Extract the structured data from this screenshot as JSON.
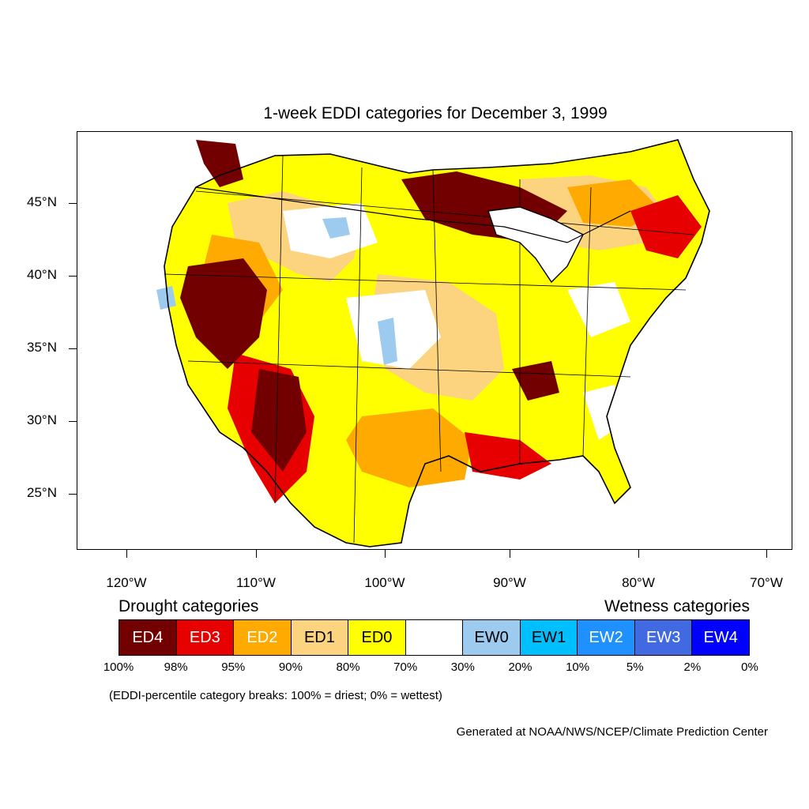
{
  "title": "1-week EDDI categories for December 3, 1999",
  "lat_labels": [
    "45°N",
    "40°N",
    "35°N",
    "30°N",
    "25°N"
  ],
  "lon_labels": [
    "120°W",
    "110°W",
    "100°W",
    "90°W",
    "80°W",
    "70°W"
  ],
  "legend": {
    "drought_heading": "Drought categories",
    "wetness_heading": "Wetness categories",
    "categories": [
      {
        "label": "ED4",
        "color": "#730000",
        "text_color": "#ffffff"
      },
      {
        "label": "ED3",
        "color": "#e60000",
        "text_color": "#ffffff"
      },
      {
        "label": "ED2",
        "color": "#ffaa00",
        "text_color": "#ffffff"
      },
      {
        "label": "ED1",
        "color": "#fcd37f",
        "text_color": "#000000"
      },
      {
        "label": "ED0",
        "color": "#ffff00",
        "text_color": "#000000"
      },
      {
        "label": "",
        "color": "#ffffff",
        "text_color": "#000000"
      },
      {
        "label": "EW0",
        "color": "#9dcbf0",
        "text_color": "#000000"
      },
      {
        "label": "EW1",
        "color": "#00bfff",
        "text_color": "#000000"
      },
      {
        "label": "EW2",
        "color": "#1e90ff",
        "text_color": "#ffffff"
      },
      {
        "label": "EW3",
        "color": "#4169e1",
        "text_color": "#ffffff"
      },
      {
        "label": "EW4",
        "color": "#0000ff",
        "text_color": "#ffffff"
      }
    ],
    "breaks": [
      "100%",
      "98%",
      "95%",
      "90%",
      "80%",
      "70%",
      "30%",
      "20%",
      "10%",
      "5%",
      "2%",
      "0%"
    ]
  },
  "note": "(EDDI-percentile category breaks: 100% = driest; 0% = wettest)",
  "credit": "Generated at NOAA/NWS/NCEP/Climate Prediction Center"
}
